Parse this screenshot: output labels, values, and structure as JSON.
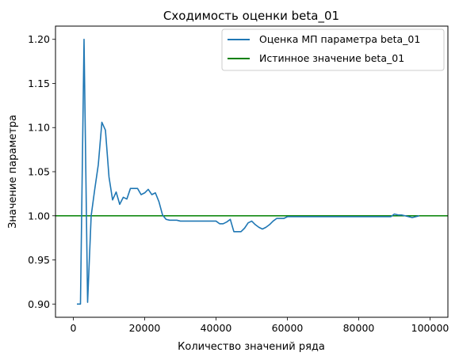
{
  "chart_data": {
    "type": "line",
    "title": "Сходимость оценки beta_01",
    "xlabel": "Количество значений ряда",
    "ylabel": "Значение параметра",
    "xlim": [
      -5000,
      105000
    ],
    "ylim": [
      0.885,
      1.215
    ],
    "xticks": [
      0,
      20000,
      40000,
      60000,
      80000,
      100000
    ],
    "xtick_labels": [
      "0",
      "20000",
      "40000",
      "60000",
      "80000",
      "100000"
    ],
    "yticks": [
      0.9,
      0.95,
      1.0,
      1.05,
      1.1,
      1.15,
      1.2
    ],
    "ytick_labels": [
      "0.90",
      "0.95",
      "1.00",
      "1.05",
      "1.10",
      "1.15",
      "1.20"
    ],
    "grid": false,
    "legend_position": "top-right",
    "series": [
      {
        "name": "Оценка МП параметра beta_01",
        "color": "#1f77b4",
        "x": [
          1000,
          2000,
          3000,
          4000,
          5000,
          6000,
          7000,
          8000,
          9000,
          10000,
          11000,
          12000,
          13000,
          14000,
          15000,
          16000,
          17000,
          18000,
          19000,
          20000,
          21000,
          22000,
          23000,
          24000,
          25000,
          26000,
          27000,
          28000,
          29000,
          30000,
          31000,
          32000,
          33000,
          34000,
          35000,
          36000,
          37000,
          38000,
          39000,
          40000,
          41000,
          42000,
          43000,
          44000,
          45000,
          46000,
          47000,
          48000,
          49000,
          50000,
          51000,
          52000,
          53000,
          54000,
          55000,
          56000,
          57000,
          58000,
          59000,
          60000,
          61000,
          62000,
          63000,
          64000,
          65000,
          66000,
          67000,
          68000,
          69000,
          70000,
          71000,
          72000,
          73000,
          74000,
          75000,
          76000,
          77000,
          78000,
          79000,
          80000,
          81000,
          82000,
          83000,
          84000,
          85000,
          86000,
          87000,
          88000,
          89000,
          90000,
          91000,
          92000,
          93000,
          94000,
          95000,
          96000,
          97000
        ],
        "y": [
          0.9,
          0.9,
          1.2,
          0.902,
          1.0,
          1.03,
          1.058,
          1.106,
          1.097,
          1.044,
          1.018,
          1.027,
          1.013,
          1.021,
          1.019,
          1.031,
          1.031,
          1.031,
          1.024,
          1.026,
          1.03,
          1.024,
          1.026,
          1.016,
          1.001,
          0.996,
          0.995,
          0.995,
          0.995,
          0.994,
          0.994,
          0.994,
          0.994,
          0.994,
          0.994,
          0.994,
          0.994,
          0.994,
          0.994,
          0.994,
          0.991,
          0.991,
          0.993,
          0.996,
          0.982,
          0.982,
          0.982,
          0.986,
          0.992,
          0.994,
          0.99,
          0.987,
          0.985,
          0.987,
          0.99,
          0.994,
          0.997,
          0.997,
          0.997,
          0.999,
          0.999,
          0.999,
          0.999,
          0.999,
          0.999,
          0.999,
          0.999,
          0.999,
          0.999,
          0.999,
          0.999,
          0.999,
          0.999,
          0.999,
          0.999,
          0.999,
          0.999,
          0.999,
          0.999,
          0.999,
          0.999,
          0.999,
          0.999,
          0.999,
          0.999,
          0.999,
          0.999,
          0.999,
          0.999,
          1.002,
          1.001,
          1.001,
          1.0,
          0.999,
          0.998,
          0.999,
          1.0
        ]
      },
      {
        "name": "Истинное значение beta_01",
        "color": "#008000",
        "y": 1.0
      }
    ]
  }
}
